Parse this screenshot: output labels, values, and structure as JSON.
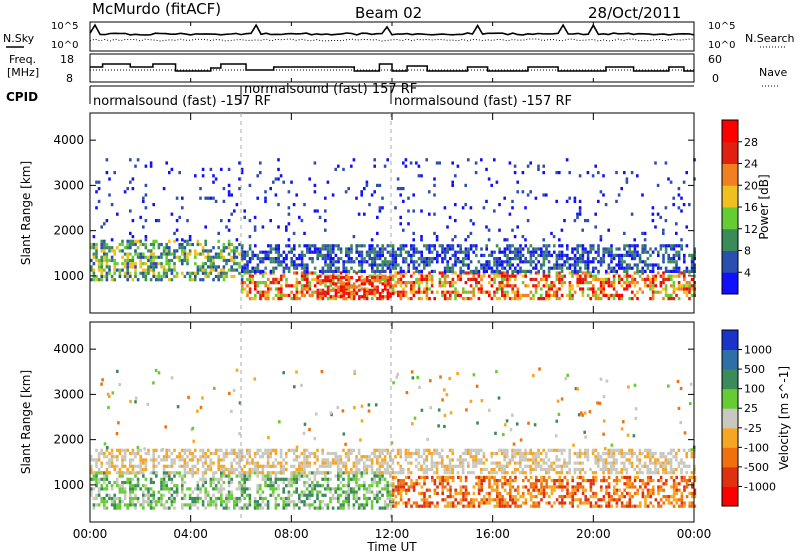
{
  "header": {
    "station": "McMurdo (fitACF)",
    "beam": "Beam 02",
    "date": "28/Oct/2011"
  },
  "noise_panel": {
    "left_label": "N.Sky",
    "right_label": "N.Search",
    "left_ticks": [
      "10^5",
      "10^0"
    ],
    "right_ticks": [
      "10^5",
      "10^0"
    ]
  },
  "freq_panel": {
    "left_label_1": "Freq.",
    "left_label_2": "[MHz]",
    "right_label": "Nave",
    "left_ticks": [
      "18",
      "8"
    ],
    "right_ticks": [
      "60",
      "0"
    ]
  },
  "cpid": {
    "label": "CPID",
    "segments": [
      "normalsound (fast) -157 RF",
      "normalsound (fast) 157 RF",
      "normalsound (fast) -157 RF"
    ]
  },
  "axes": {
    "ylabel": "Slant Range [km]",
    "yticks": [
      "1000",
      "2000",
      "3000",
      "4000"
    ],
    "xticks": [
      "00:00",
      "04:00",
      "08:00",
      "12:00",
      "16:00",
      "20:00",
      "00:00"
    ],
    "xlabel": "Time UT"
  },
  "power_colorbar": {
    "label": "Power [dB]",
    "ticks": [
      "4",
      "8",
      "12",
      "16",
      "20",
      "24",
      "28"
    ],
    "colors": [
      "#1010ff",
      "#2a4fb0",
      "#3a8a5a",
      "#66cc33",
      "#f0c020",
      "#f08020",
      "#e02010",
      "#ff0000"
    ]
  },
  "velocity_colorbar": {
    "label": "Velocity [m s^-1]",
    "ticks": [
      "1000",
      "500",
      "100",
      "25",
      "-25",
      "-100",
      "-500",
      "-1000"
    ],
    "colors": [
      "#1a33c8",
      "#2e6fa8",
      "#3a8a5a",
      "#66cc33",
      "#c8c8c0",
      "#f5a623",
      "#f07010",
      "#e03010",
      "#ff0000"
    ]
  },
  "chart_data": {
    "type": "heatmap",
    "title": "McMurdo (fitACF) Beam 02 28/Oct/2011",
    "xlabel": "Time UT",
    "ylabel": "Slant Range [km]",
    "x_range_hours": [
      0,
      24
    ],
    "y_range_km": [
      180,
      4600
    ],
    "panels": [
      {
        "name": "Power [dB]",
        "clim": [
          0,
          30
        ],
        "bands": [
          {
            "t_start": 0,
            "t_end": 6,
            "range_km": [
              900,
              1800
            ],
            "level": "low-mid"
          },
          {
            "t_start": 6,
            "t_end": 24,
            "range_km": [
              500,
              1100
            ],
            "level": "high"
          },
          {
            "t_start": 9,
            "t_end": 12,
            "range_km": [
              550,
              1000
            ],
            "level": "max"
          },
          {
            "t_start": 6,
            "t_end": 24,
            "range_km": [
              1100,
              1700
            ],
            "level": "low"
          },
          {
            "t_start": 0,
            "t_end": 24,
            "range_km": [
              1800,
              3600
            ],
            "level": "sparse-low"
          }
        ]
      },
      {
        "name": "Velocity [m s^-1]",
        "clim": [
          -1000,
          1000
        ],
        "bands": [
          {
            "t_start": 0,
            "t_end": 12,
            "range_km": [
              500,
              1300
            ],
            "level": "positive (100-500)"
          },
          {
            "t_start": 12,
            "t_end": 24,
            "range_km": [
              500,
              1200
            ],
            "level": "negative (-100 to -500)"
          },
          {
            "t_start": 0,
            "t_end": 24,
            "range_km": [
              1300,
              1800
            ],
            "level": "near zero (-25 to 25)"
          }
        ]
      }
    ]
  }
}
